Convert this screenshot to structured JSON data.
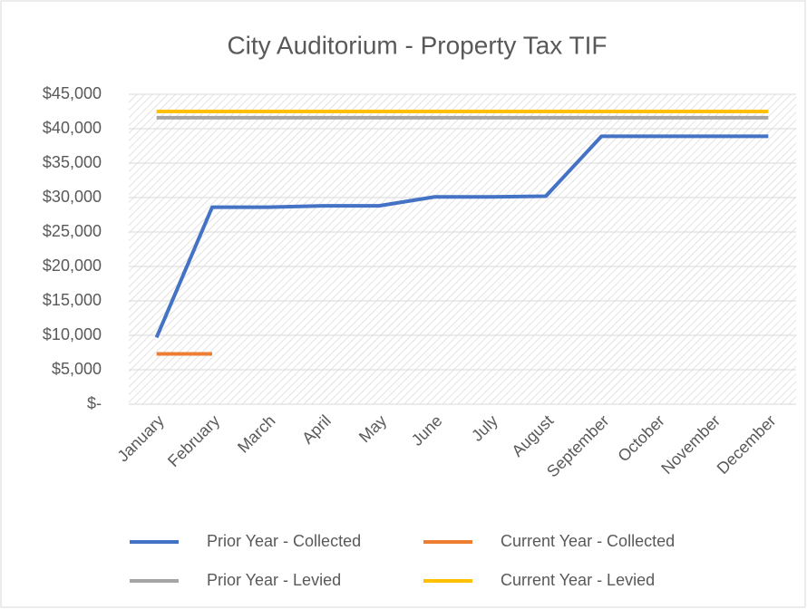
{
  "chart_data": {
    "type": "line",
    "title": "City Auditorium - Property Tax TIF",
    "categories": [
      "January",
      "February",
      "March",
      "April",
      "May",
      "June",
      "July",
      "August",
      "September",
      "October",
      "November",
      "December"
    ],
    "series": [
      {
        "name": "Prior Year - Collected",
        "color": "#4472c4",
        "values": [
          9700,
          28600,
          28600,
          28800,
          28800,
          30100,
          30100,
          30200,
          38900,
          38900,
          38900,
          38900
        ]
      },
      {
        "name": "Current Year - Collected",
        "color": "#ed7d31",
        "values": [
          7300,
          7300,
          null,
          null,
          null,
          null,
          null,
          null,
          null,
          null,
          null,
          null
        ]
      },
      {
        "name": "Prior Year - Levied",
        "color": "#a5a5a5",
        "values": [
          41600,
          41600,
          41600,
          41600,
          41600,
          41600,
          41600,
          41600,
          41600,
          41600,
          41600,
          41600
        ]
      },
      {
        "name": "Current Year - Levied",
        "color": "#ffc000",
        "values": [
          42500,
          42500,
          42500,
          42500,
          42500,
          42500,
          42500,
          42500,
          42500,
          42500,
          42500,
          42500
        ]
      }
    ],
    "ylim": [
      0,
      45000
    ],
    "yticks": [
      {
        "value": 0,
        "label": "$-"
      },
      {
        "value": 5000,
        "label": "$5,000"
      },
      {
        "value": 10000,
        "label": "$10,000"
      },
      {
        "value": 15000,
        "label": "$15,000"
      },
      {
        "value": 20000,
        "label": "$20,000"
      },
      {
        "value": 25000,
        "label": "$25,000"
      },
      {
        "value": 30000,
        "label": "$30,000"
      },
      {
        "value": 35000,
        "label": "$35,000"
      },
      {
        "value": 40000,
        "label": "$40,000"
      },
      {
        "value": 45000,
        "label": "$45,000"
      }
    ],
    "grid": true,
    "legend": "bottom"
  }
}
